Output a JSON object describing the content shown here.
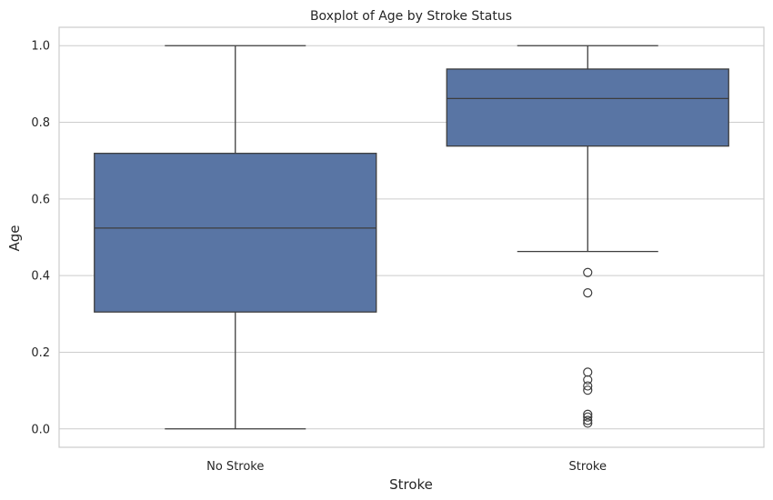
{
  "chart_data": {
    "type": "box",
    "title": "Boxplot of Age by Stroke Status",
    "xlabel": "Stroke",
    "ylabel": "Age",
    "ylim": [
      -0.048,
      1.048
    ],
    "yticks": [
      0.0,
      0.2,
      0.4,
      0.6,
      0.8,
      1.0
    ],
    "ytick_labels": [
      "0.0",
      "0.2",
      "0.4",
      "0.6",
      "0.8",
      "1.0"
    ],
    "grid": true,
    "legend": "none",
    "color": "#5975a4",
    "line_color": "#3d3d3d",
    "categories": [
      "No Stroke",
      "Stroke"
    ],
    "boxes": [
      {
        "category": "No Stroke",
        "whisker_low": 0.0,
        "q1": 0.305,
        "median": 0.524,
        "q3": 0.719,
        "whisker_high": 1.0,
        "outliers": []
      },
      {
        "category": "Stroke",
        "whisker_low": 0.463,
        "q1": 0.738,
        "median": 0.862,
        "q3": 0.939,
        "whisker_high": 1.0,
        "outliers": [
          0.408,
          0.355,
          0.148,
          0.128,
          0.112,
          0.101,
          0.038,
          0.031,
          0.022,
          0.015
        ]
      }
    ]
  }
}
